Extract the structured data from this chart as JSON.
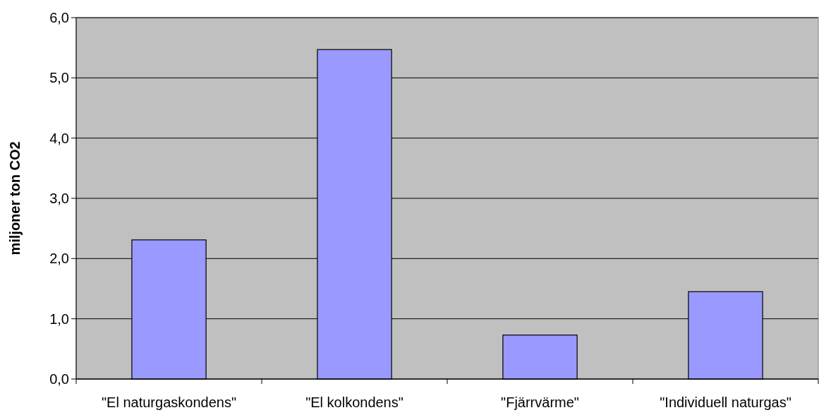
{
  "chart_data": {
    "type": "bar",
    "ylabel": "miljoner ton CO2",
    "categories": [
      "\"El naturgaskondens\"",
      "\"El kolkondens\"",
      "\"Fjärrvärme\"",
      "\"Individuell naturgas\""
    ],
    "values": [
      2.31,
      5.47,
      0.73,
      1.45
    ],
    "color": "#9999ff",
    "ylim": [
      0,
      6
    ],
    "yticks": [
      {
        "value": 0,
        "label": "0,0"
      },
      {
        "value": 1,
        "label": "1,0"
      },
      {
        "value": 2,
        "label": "2,0"
      },
      {
        "value": 3,
        "label": "3,0"
      },
      {
        "value": 4,
        "label": "4,0"
      },
      {
        "value": 5,
        "label": "5,0"
      },
      {
        "value": 6,
        "label": "6,0"
      }
    ],
    "grid": "y"
  }
}
